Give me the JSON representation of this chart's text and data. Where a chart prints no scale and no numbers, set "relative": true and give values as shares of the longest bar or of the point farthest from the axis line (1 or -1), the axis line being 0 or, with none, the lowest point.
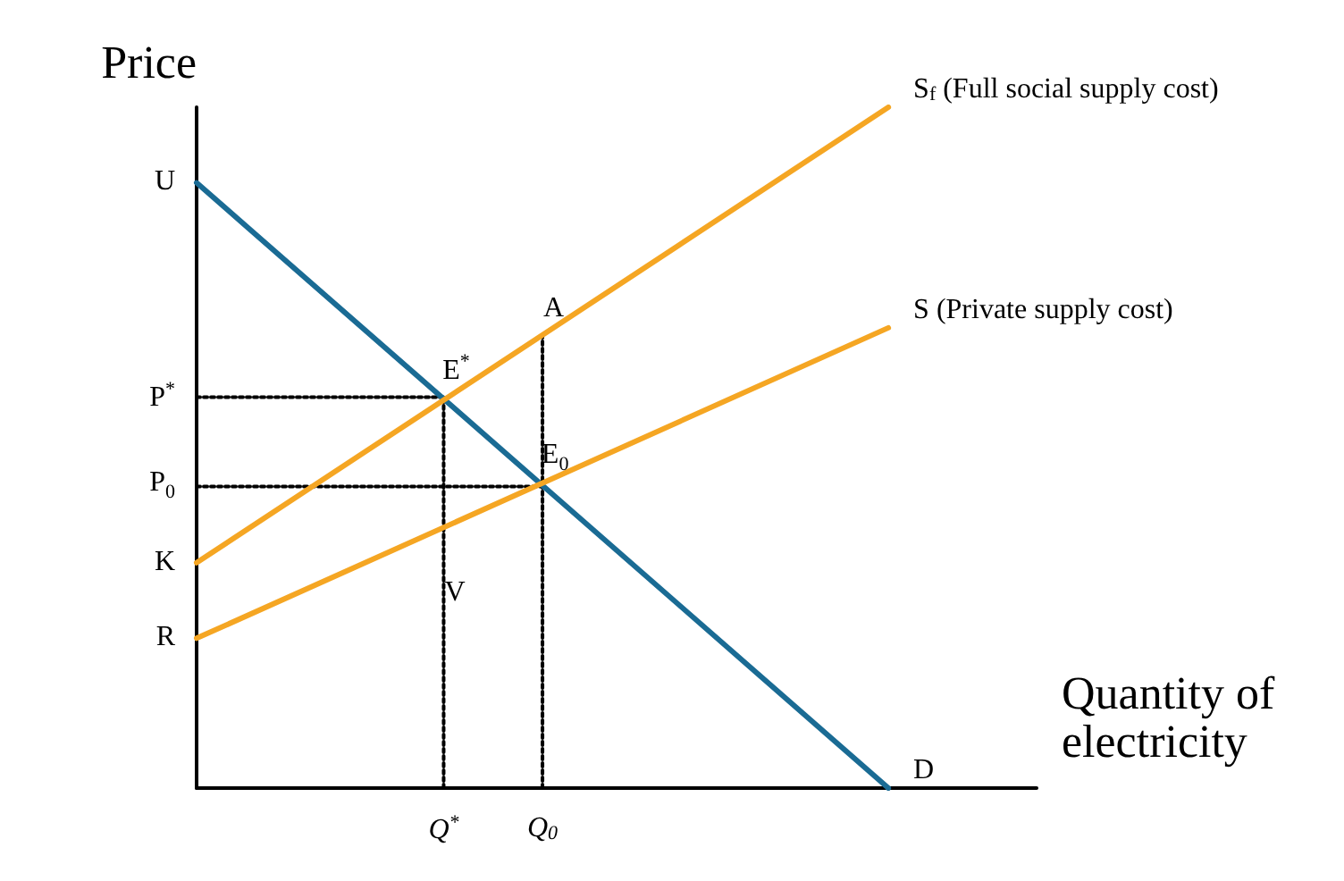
{
  "chart_data": {
    "type": "line",
    "relative": true,
    "xlabel": "Quantity of electricity",
    "ylabel": "Price",
    "categories": [
      null,
      null,
      null,
      null,
      null,
      "Q$^{*}$",
      null,
      "Q$_{0}$",
      null,
      null,
      null,
      null,
      null,
      null,
      null,
      null,
      null,
      null
    ],
    "marker": "none",
    "grid": false,
    "legend": false,
    "series": [
      {
        "name": "D",
        "color": "#1a6b94",
        "values": [
          0.889,
          null,
          null,
          null,
          null,
          null,
          null,
          null,
          null,
          null,
          null,
          null,
          null,
          null,
          0,
          null,
          null,
          null
        ]
      },
      {
        "name": "S$_{f}$ (Full social supply cost)",
        "color": "#f5a623",
        "values": [
          0.331,
          null,
          null,
          null,
          null,
          null,
          null,
          null,
          null,
          null,
          null,
          null,
          null,
          null,
          1,
          null,
          null,
          null
        ]
      },
      {
        "name": "S (Private supply cost)",
        "color": "#f5a623",
        "values": [
          0.22,
          null,
          null,
          null,
          null,
          null,
          null,
          null,
          null,
          null,
          null,
          null,
          null,
          null,
          0.676,
          null,
          null,
          null
        ]
      },
      {
        "color": "#000000",
        "line_style": "dotted",
        "values": [
          0.574,
          null,
          null,
          null,
          null,
          0.574,
          null,
          null,
          null,
          null,
          null,
          null,
          null,
          null,
          null,
          null,
          null,
          null
        ]
      },
      {
        "color": "#000000",
        "line_style": "dotted",
        "values": [
          0.443,
          null,
          null,
          null,
          null,
          null,
          null,
          0.443,
          null,
          null,
          null,
          null,
          null,
          null,
          null,
          null,
          null,
          null
        ]
      },
      {
        "color": "#000000",
        "line_style": "dotted",
        "x": [
          "Q$^{*}$",
          "Q$^{*}$"
        ],
        "values": [
          0,
          0.574
        ]
      },
      {
        "color": "#000000",
        "line_style": "dotted",
        "x": [
          "Q$_{0}$",
          "Q$_{0}$"
        ],
        "values": [
          0,
          0.666
        ]
      }
    ],
    "annotations": [
      "U",
      "K",
      "R",
      "P$^{*}$",
      "P$_{0}$",
      {
        "text": "A",
        "x": "Q$_{0}$",
        "y": 0.666
      },
      {
        "text": "V",
        "x": "Q$^{*}$",
        "y": 0.25
      },
      {
        "text": "E$^{*}$",
        "x": "Q$^{*}$",
        "y": 0.574
      },
      {
        "text": "E$_{0}$",
        "x": "Q$_{0}$",
        "y": 0.443
      }
    ]
  }
}
